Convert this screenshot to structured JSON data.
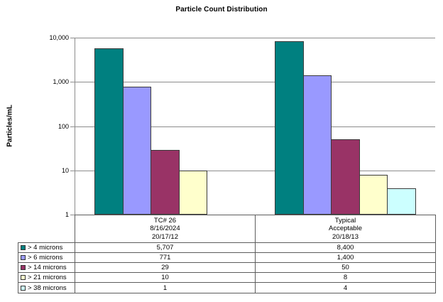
{
  "title": "Particle Count Distribution",
  "y_axis_label": "Particles/mL",
  "chart_data": {
    "type": "bar",
    "title": "Particle Count Distribution",
    "ylabel": "Particles/mL",
    "y_scale": "log10",
    "ylim": [
      1,
      10000
    ],
    "y_ticks": [
      {
        "value": 10000,
        "label": "10,000"
      },
      {
        "value": 1000,
        "label": "1,000"
      },
      {
        "value": 100,
        "label": "100"
      },
      {
        "value": 10,
        "label": "10"
      },
      {
        "value": 1,
        "label": "1"
      }
    ],
    "grid": true,
    "legend_position": "data-table-below",
    "categories": [
      {
        "lines": [
          "TC# 26",
          "8/16/2024",
          "20/17/12"
        ]
      },
      {
        "lines": [
          "Typical",
          "Acceptable",
          "20/18/13"
        ]
      }
    ],
    "series": [
      {
        "name": "> 4 microns",
        "color": "#008080",
        "values": [
          5707,
          8400
        ],
        "labels": [
          "5,707",
          "8,400"
        ]
      },
      {
        "name": "> 6 microns",
        "color": "#9999FF",
        "values": [
          771,
          1400
        ],
        "labels": [
          "771",
          "1,400"
        ]
      },
      {
        "name": "> 14 microns",
        "color": "#993366",
        "values": [
          29,
          50
        ],
        "labels": [
          "29",
          "50"
        ]
      },
      {
        "name": "> 21 microns",
        "color": "#FFFFCC",
        "values": [
          10,
          8
        ],
        "labels": [
          "10",
          "8"
        ]
      },
      {
        "name": "> 38 microns",
        "color": "#CCFFFF",
        "values": [
          1,
          4
        ],
        "labels": [
          "1",
          "4"
        ]
      }
    ],
    "colors": {
      "background": "#FFFFFF",
      "gridline": "#8C8C8C",
      "axis": "#8C8C8C",
      "bar_border": "#3A3A3A",
      "table_border": "#5D5D5D",
      "text": "#000000"
    }
  }
}
